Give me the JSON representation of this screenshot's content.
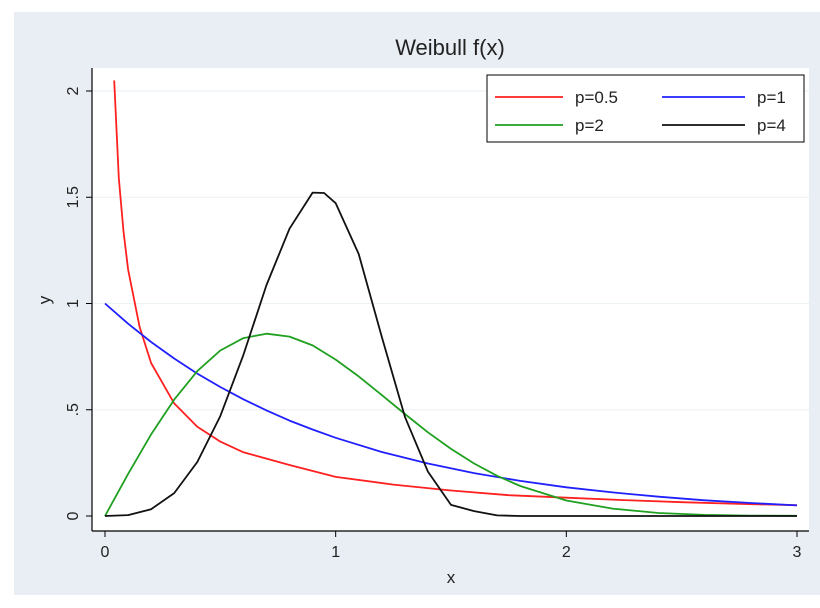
{
  "chart_data": {
    "type": "line",
    "title": "Weibull f(x)",
    "xlabel": "x",
    "ylabel": "y",
    "xlim": [
      0,
      3
    ],
    "ylim": [
      0,
      2.05
    ],
    "x_ticks": [
      {
        "value": 0,
        "label": "0"
      },
      {
        "value": 1,
        "label": "1"
      },
      {
        "value": 2,
        "label": "2"
      },
      {
        "value": 3,
        "label": "3"
      }
    ],
    "y_ticks": [
      {
        "value": 0,
        "label": "0"
      },
      {
        "value": 0.5,
        "label": ".5"
      },
      {
        "value": 1,
        "label": "1"
      },
      {
        "value": 1.5,
        "label": "1.5"
      },
      {
        "value": 2,
        "label": "2"
      }
    ],
    "grid": "horizontal",
    "legend_position": "top-right",
    "series": [
      {
        "name": "p=0.5",
        "color": "#ff2020",
        "x": [
          0.04,
          0.06,
          0.08,
          0.1,
          0.15,
          0.2,
          0.3,
          0.4,
          0.5,
          0.6,
          0.8,
          1.0,
          1.25,
          1.5,
          1.75,
          2.0,
          2.25,
          2.5,
          2.75,
          3.0
        ],
        "y": [
          2.05,
          1.59,
          1.34,
          1.16,
          0.89,
          0.72,
          0.53,
          0.42,
          0.35,
          0.3,
          0.24,
          0.184,
          0.148,
          0.12,
          0.098,
          0.086,
          0.075,
          0.065,
          0.057,
          0.051
        ]
      },
      {
        "name": "p=1",
        "color": "#2020ff",
        "x": [
          0,
          0.1,
          0.2,
          0.3,
          0.4,
          0.5,
          0.6,
          0.7,
          0.8,
          0.9,
          1.0,
          1.2,
          1.4,
          1.6,
          1.8,
          2.0,
          2.2,
          2.4,
          2.6,
          2.8,
          3.0
        ],
        "y": [
          1.0,
          0.905,
          0.819,
          0.741,
          0.67,
          0.607,
          0.549,
          0.497,
          0.449,
          0.407,
          0.368,
          0.301,
          0.247,
          0.202,
          0.165,
          0.135,
          0.111,
          0.091,
          0.074,
          0.061,
          0.05
        ]
      },
      {
        "name": "p=2",
        "color": "#20a020",
        "x": [
          0,
          0.1,
          0.2,
          0.3,
          0.4,
          0.5,
          0.6,
          0.7,
          0.8,
          0.9,
          1.0,
          1.1,
          1.2,
          1.3,
          1.4,
          1.5,
          1.6,
          1.7,
          1.8,
          2.0,
          2.2,
          2.4,
          2.6,
          2.8,
          3.0
        ],
        "y": [
          0,
          0.198,
          0.384,
          0.548,
          0.682,
          0.779,
          0.837,
          0.858,
          0.844,
          0.803,
          0.736,
          0.657,
          0.569,
          0.48,
          0.394,
          0.316,
          0.247,
          0.189,
          0.141,
          0.073,
          0.035,
          0.014,
          0.005,
          0.002,
          0.001
        ]
      },
      {
        "name": "p=4",
        "color": "#111111",
        "x": [
          0,
          0.1,
          0.2,
          0.3,
          0.4,
          0.5,
          0.6,
          0.7,
          0.8,
          0.9,
          0.95,
          1.0,
          1.1,
          1.2,
          1.3,
          1.4,
          1.5,
          1.6,
          1.7,
          1.8,
          2.0,
          2.5,
          3.0
        ],
        "y": [
          0,
          0.004,
          0.032,
          0.108,
          0.254,
          0.47,
          0.758,
          1.087,
          1.352,
          1.522,
          1.52,
          1.472,
          1.233,
          0.843,
          0.467,
          0.209,
          0.052,
          0.023,
          0.003,
          0.0,
          0.0,
          0.0,
          0.0
        ]
      }
    ]
  }
}
